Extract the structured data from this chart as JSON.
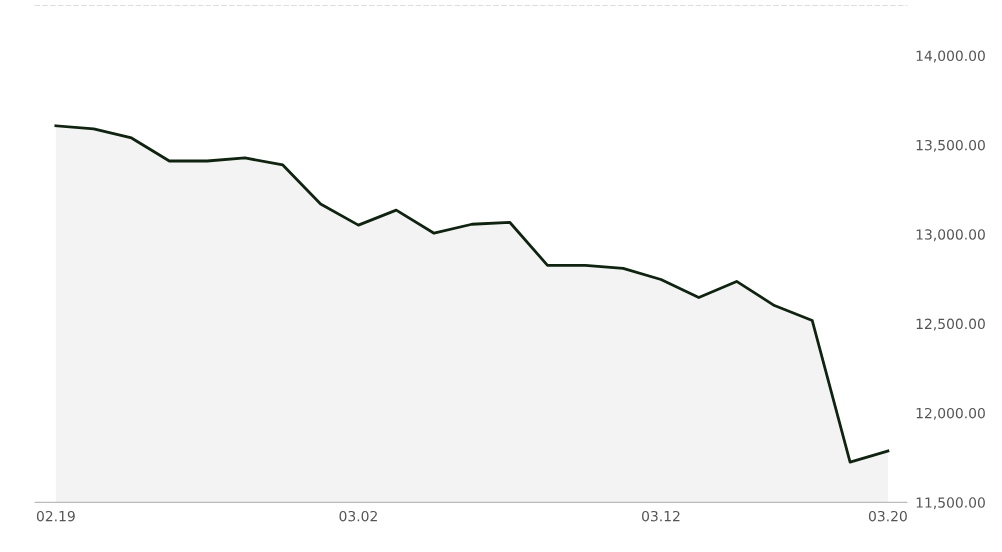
{
  "chart_data": {
    "type": "area",
    "categories": [
      "02.19",
      null,
      null,
      null,
      null,
      null,
      null,
      null,
      "03.02",
      null,
      null,
      null,
      null,
      null,
      null,
      null,
      "03.12",
      null,
      null,
      null,
      null,
      null,
      "03.20"
    ],
    "series": [
      {
        "color": "#0f2310",
        "values": [
          13607,
          13590,
          13539,
          13410,
          13410,
          13427,
          13388,
          13169,
          13051,
          13135,
          13006,
          13056,
          13067,
          12826,
          12826,
          12809,
          12747,
          12646,
          12736,
          12601,
          12517,
          11725,
          11787
        ]
      }
    ],
    "ylim": [
      11500,
      14280
    ],
    "yticks": [
      {
        "value": 11500,
        "label": "11,500.00"
      },
      {
        "value": 12000,
        "label": "12,000.00"
      },
      {
        "value": 12500,
        "label": "12,500.00"
      },
      {
        "value": 13000,
        "label": "13,000.00"
      },
      {
        "value": 13500,
        "label": "13,500.00"
      },
      {
        "value": 14000,
        "label": "14,000.00"
      }
    ],
    "grid": false,
    "legend": false,
    "marker": "none",
    "line_style": "solid"
  }
}
